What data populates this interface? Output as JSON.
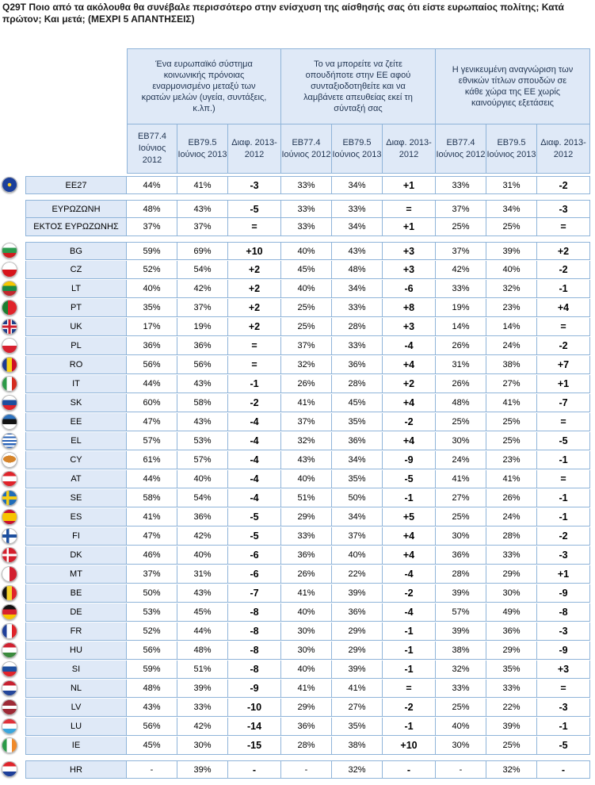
{
  "title": "Q29T Ποιο από τα ακόλουθα θα συνέβαλε περισσότερο στην ενίσχυση της αίσθησής σας ότι είστε ευρωπαίος πολίτης; Κατά πρώτον; Και μετά; (ΜΕΧΡΙ 5 ΑΠΑΝΤΗΣΕΙΣ)",
  "groups": [
    "Ένα ευρωπαϊκό σύστημα κοινωνικής πρόνοιας εναρμονισμένο μεταξύ των κρατών μελών (υγεία, συντάξεις, κ.λπ.)",
    "Το να μπορείτε να ζείτε οπουδήποτε στην ΕΕ αφού συνταξιοδοτηθείτε και να λαμβάνετε απευθείας εκεί τη σύνταξή σας",
    "Η γενικευμένη αναγνώριση των εθνικών τίτλων σπουδών σε κάθε χώρα της ΕΕ χωρίς καινούργιες εξετάσεις"
  ],
  "subheaders": [
    "EB77.4 Ιούνιος 2012",
    "EB79.5 Ιούνιος 2013",
    "Διαφ. 2013-2012"
  ],
  "rows": [
    {
      "label": "EE27",
      "flag": "eu",
      "vals": [
        "44%",
        "41%",
        "-3",
        "33%",
        "34%",
        "+1",
        "33%",
        "31%",
        "-2"
      ]
    },
    {
      "label": "ΕΥΡΩΖΩΝΗ",
      "flag": "",
      "vals": [
        "48%",
        "43%",
        "-5",
        "33%",
        "33%",
        "=",
        "37%",
        "34%",
        "-3"
      ]
    },
    {
      "label": "ΕΚΤΟΣ ΕΥΡΩΖΩΝΗΣ",
      "flag": "",
      "vals": [
        "37%",
        "37%",
        "=",
        "33%",
        "34%",
        "+1",
        "25%",
        "25%",
        "="
      ]
    },
    {
      "label": "BG",
      "flag": "bg",
      "vals": [
        "59%",
        "69%",
        "+10",
        "40%",
        "43%",
        "+3",
        "37%",
        "39%",
        "+2"
      ]
    },
    {
      "label": "CZ",
      "flag": "cz",
      "vals": [
        "52%",
        "54%",
        "+2",
        "45%",
        "48%",
        "+3",
        "42%",
        "40%",
        "-2"
      ]
    },
    {
      "label": "LT",
      "flag": "lt",
      "vals": [
        "40%",
        "42%",
        "+2",
        "40%",
        "34%",
        "-6",
        "33%",
        "32%",
        "-1"
      ]
    },
    {
      "label": "PT",
      "flag": "pt",
      "vals": [
        "35%",
        "37%",
        "+2",
        "25%",
        "33%",
        "+8",
        "19%",
        "23%",
        "+4"
      ]
    },
    {
      "label": "UK",
      "flag": "uk",
      "vals": [
        "17%",
        "19%",
        "+2",
        "25%",
        "28%",
        "+3",
        "14%",
        "14%",
        "="
      ]
    },
    {
      "label": "PL",
      "flag": "pl",
      "vals": [
        "36%",
        "36%",
        "=",
        "37%",
        "33%",
        "-4",
        "26%",
        "24%",
        "-2"
      ]
    },
    {
      "label": "RO",
      "flag": "ro",
      "vals": [
        "56%",
        "56%",
        "=",
        "32%",
        "36%",
        "+4",
        "31%",
        "38%",
        "+7"
      ]
    },
    {
      "label": "IT",
      "flag": "it",
      "vals": [
        "44%",
        "43%",
        "-1",
        "26%",
        "28%",
        "+2",
        "26%",
        "27%",
        "+1"
      ]
    },
    {
      "label": "SK",
      "flag": "sk",
      "vals": [
        "60%",
        "58%",
        "-2",
        "41%",
        "45%",
        "+4",
        "48%",
        "41%",
        "-7"
      ]
    },
    {
      "label": "EE",
      "flag": "ee",
      "vals": [
        "47%",
        "43%",
        "-4",
        "37%",
        "35%",
        "-2",
        "25%",
        "25%",
        "="
      ]
    },
    {
      "label": "EL",
      "flag": "el",
      "vals": [
        "57%",
        "53%",
        "-4",
        "32%",
        "36%",
        "+4",
        "30%",
        "25%",
        "-5"
      ]
    },
    {
      "label": "CY",
      "flag": "cy",
      "vals": [
        "61%",
        "57%",
        "-4",
        "43%",
        "34%",
        "-9",
        "24%",
        "23%",
        "-1"
      ]
    },
    {
      "label": "AT",
      "flag": "at",
      "vals": [
        "44%",
        "40%",
        "-4",
        "40%",
        "35%",
        "-5",
        "41%",
        "41%",
        "="
      ]
    },
    {
      "label": "SE",
      "flag": "se",
      "vals": [
        "58%",
        "54%",
        "-4",
        "51%",
        "50%",
        "-1",
        "27%",
        "26%",
        "-1"
      ]
    },
    {
      "label": "ES",
      "flag": "es",
      "vals": [
        "41%",
        "36%",
        "-5",
        "29%",
        "34%",
        "+5",
        "25%",
        "24%",
        "-1"
      ]
    },
    {
      "label": "FI",
      "flag": "fi",
      "vals": [
        "47%",
        "42%",
        "-5",
        "33%",
        "37%",
        "+4",
        "30%",
        "28%",
        "-2"
      ]
    },
    {
      "label": "DK",
      "flag": "dk",
      "vals": [
        "46%",
        "40%",
        "-6",
        "36%",
        "40%",
        "+4",
        "36%",
        "33%",
        "-3"
      ]
    },
    {
      "label": "MT",
      "flag": "mt",
      "vals": [
        "37%",
        "31%",
        "-6",
        "26%",
        "22%",
        "-4",
        "28%",
        "29%",
        "+1"
      ]
    },
    {
      "label": "BE",
      "flag": "be",
      "vals": [
        "50%",
        "43%",
        "-7",
        "41%",
        "39%",
        "-2",
        "39%",
        "30%",
        "-9"
      ]
    },
    {
      "label": "DE",
      "flag": "de",
      "vals": [
        "53%",
        "45%",
        "-8",
        "40%",
        "36%",
        "-4",
        "57%",
        "49%",
        "-8"
      ]
    },
    {
      "label": "FR",
      "flag": "fr",
      "vals": [
        "52%",
        "44%",
        "-8",
        "30%",
        "29%",
        "-1",
        "39%",
        "36%",
        "-3"
      ]
    },
    {
      "label": "HU",
      "flag": "hu",
      "vals": [
        "56%",
        "48%",
        "-8",
        "30%",
        "29%",
        "-1",
        "38%",
        "29%",
        "-9"
      ]
    },
    {
      "label": "SI",
      "flag": "si",
      "vals": [
        "59%",
        "51%",
        "-8",
        "40%",
        "39%",
        "-1",
        "32%",
        "35%",
        "+3"
      ]
    },
    {
      "label": "NL",
      "flag": "nl",
      "vals": [
        "48%",
        "39%",
        "-9",
        "41%",
        "41%",
        "=",
        "33%",
        "33%",
        "="
      ]
    },
    {
      "label": "LV",
      "flag": "lv",
      "vals": [
        "43%",
        "33%",
        "-10",
        "29%",
        "27%",
        "-2",
        "25%",
        "22%",
        "-3"
      ]
    },
    {
      "label": "LU",
      "flag": "lu",
      "vals": [
        "56%",
        "42%",
        "-14",
        "36%",
        "35%",
        "-1",
        "40%",
        "39%",
        "-1"
      ]
    },
    {
      "label": "IE",
      "flag": "ie",
      "vals": [
        "45%",
        "30%",
        "-15",
        "28%",
        "38%",
        "+10",
        "30%",
        "25%",
        "-5"
      ]
    },
    {
      "label": "HR",
      "flag": "hr",
      "vals": [
        "-",
        "39%",
        "-",
        "-",
        "32%",
        "-",
        "-",
        "32%",
        "-"
      ]
    }
  ]
}
